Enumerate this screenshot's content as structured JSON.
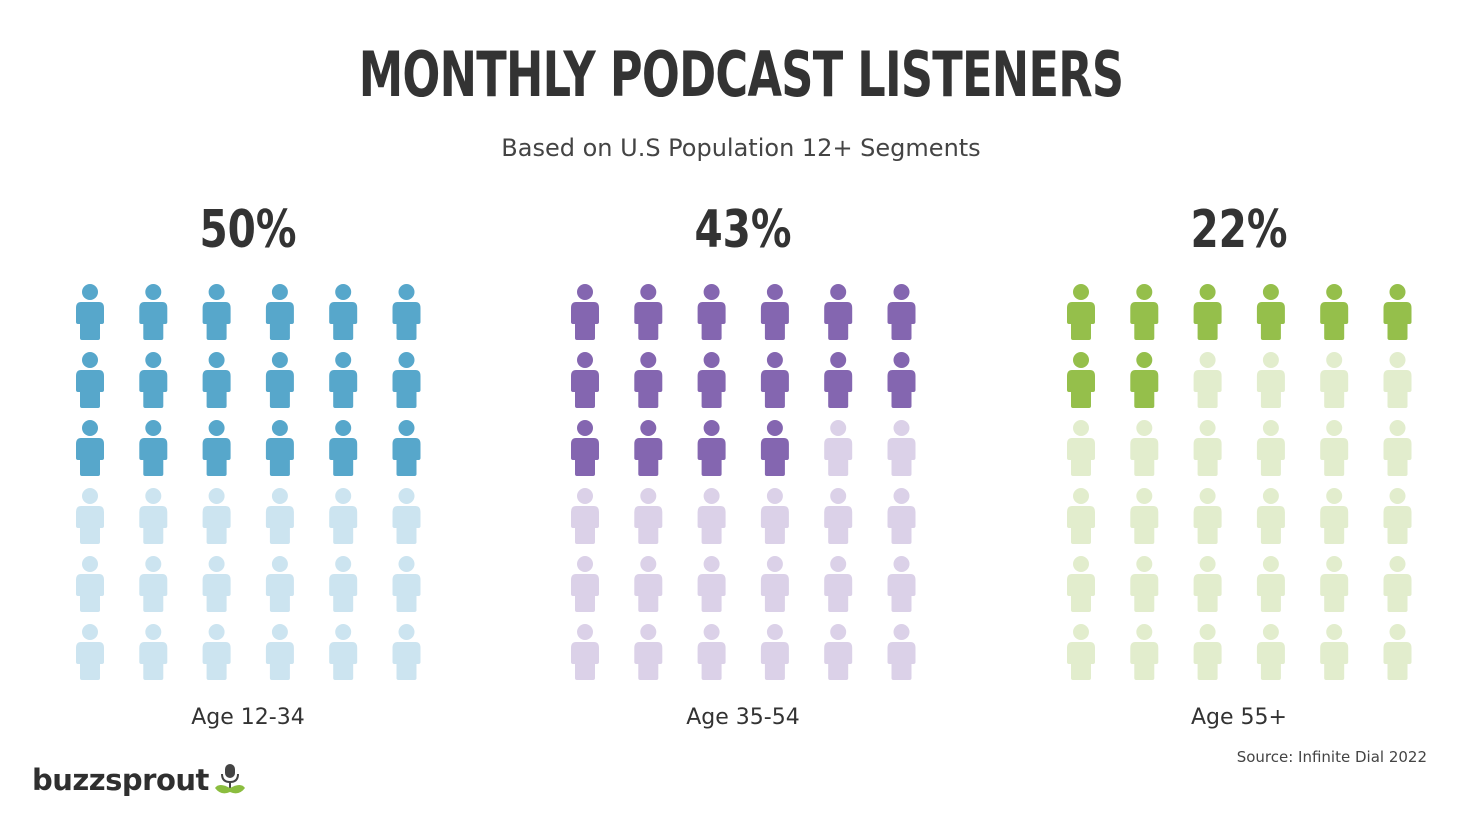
{
  "title": "MONTHLY PODCAST LISTENERS",
  "subtitle": "Based on U.S Population 12+ Segments",
  "source": "Source: Infinite Dial 2022",
  "logo_text": "buzzsprout",
  "chart_data": [
    {
      "type": "pictograph",
      "label": "Age 12-34",
      "value_label": "50%",
      "value": 50,
      "grid": {
        "rows": 6,
        "cols": 6
      },
      "filled_icons": 18,
      "colors": {
        "filled": "#57a7cb",
        "empty": "#cce4f0"
      }
    },
    {
      "type": "pictograph",
      "label": "Age 35-54",
      "value_label": "43%",
      "value": 43,
      "grid": {
        "rows": 6,
        "cols": 6
      },
      "filled_icons": 16,
      "colors": {
        "filled": "#8466b0",
        "empty": "#dbd1e8"
      }
    },
    {
      "type": "pictograph",
      "label": "Age 55+",
      "value_label": "22%",
      "value": 22,
      "grid": {
        "rows": 6,
        "cols": 6
      },
      "filled_icons": 8,
      "colors": {
        "filled": "#95bf4b",
        "empty": "#e2edcd"
      }
    }
  ]
}
